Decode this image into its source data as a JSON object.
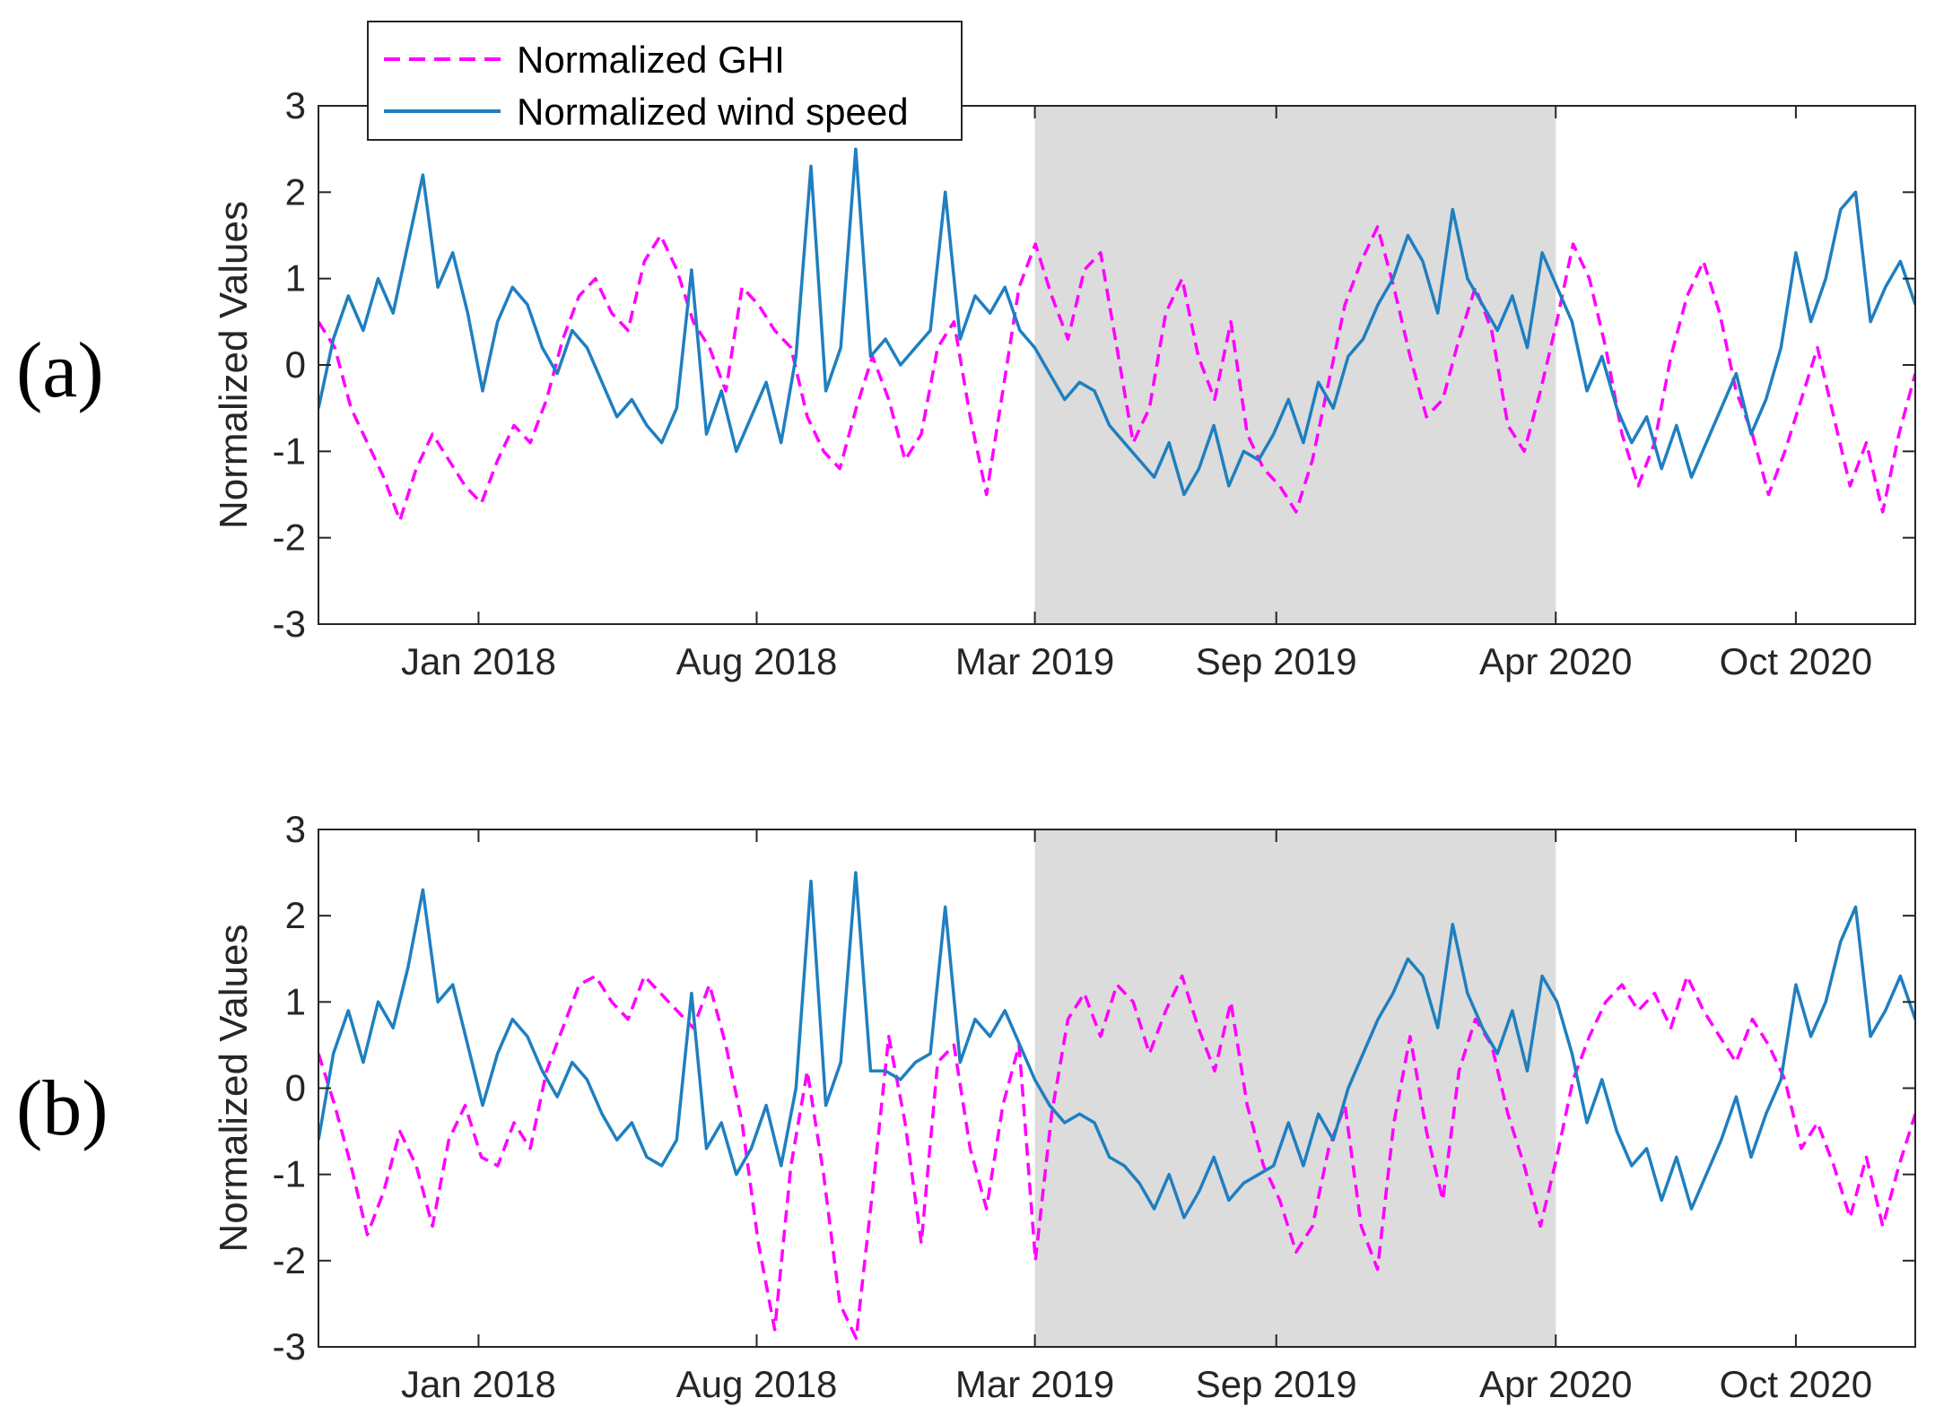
{
  "chart_data": [
    {
      "type": "line",
      "panel_label": "(a)",
      "ylabel": "Normalized Values",
      "ylim": [
        -3,
        3
      ],
      "yticks": [
        3,
        2,
        1,
        0,
        -1,
        -2,
        -3
      ],
      "xlim": [
        "2017-09-01",
        "2020-12-31"
      ],
      "xticks": [
        {
          "date": "2018-01-01",
          "label": "Jan 2018"
        },
        {
          "date": "2018-08-01",
          "label": "Aug 2018"
        },
        {
          "date": "2019-03-01",
          "label": "Mar 2019"
        },
        {
          "date": "2019-09-01",
          "label": "Sep 2019"
        },
        {
          "date": "2020-04-01",
          "label": "Apr 2020"
        },
        {
          "date": "2020-10-01",
          "label": "Oct 2020"
        }
      ],
      "shaded_region": [
        "2019-03-01",
        "2020-04-01"
      ],
      "legend": {
        "position": "top-left",
        "entries": [
          "Normalized GHI",
          "Normalized wind speed"
        ]
      },
      "series": [
        {
          "name": "Normalized GHI",
          "color": "#ff00ff",
          "style": "dashed",
          "values": [
            0.5,
            0.2,
            -0.5,
            -0.9,
            -1.3,
            -1.8,
            -1.2,
            -0.8,
            -1.1,
            -1.4,
            -1.6,
            -1.1,
            -0.7,
            -0.9,
            -0.4,
            0.3,
            0.8,
            1.0,
            0.6,
            0.4,
            1.2,
            1.5,
            1.1,
            0.5,
            0.2,
            -0.3,
            0.9,
            0.7,
            0.4,
            0.2,
            -0.6,
            -1.0,
            -1.2,
            -0.5,
            0.1,
            -0.4,
            -1.1,
            -0.8,
            0.2,
            0.5,
            -0.6,
            -1.5,
            -0.3,
            0.9,
            1.4,
            0.8,
            0.3,
            1.1,
            1.3,
            0.2,
            -0.9,
            -0.5,
            0.6,
            1.0,
            0.1,
            -0.4,
            0.5,
            -0.8,
            -1.2,
            -1.4,
            -1.7,
            -1.1,
            -0.2,
            0.7,
            1.2,
            1.6,
            0.9,
            0.1,
            -0.6,
            -0.4,
            0.3,
            0.9,
            0.4,
            -0.7,
            -1.0,
            -0.3,
            0.5,
            1.4,
            1.0,
            0.2,
            -0.8,
            -1.4,
            -0.9,
            0.1,
            0.8,
            1.2,
            0.6,
            -0.3,
            -0.8,
            -1.5,
            -1.0,
            -0.4,
            0.2,
            -0.6,
            -1.4,
            -0.9,
            -1.7,
            -0.8,
            -0.1
          ]
        },
        {
          "name": "Normalized wind speed",
          "color": "#1f7fc0",
          "style": "solid",
          "values": [
            -0.5,
            0.3,
            0.8,
            0.4,
            1.0,
            0.6,
            1.4,
            2.2,
            0.9,
            1.3,
            0.6,
            -0.3,
            0.5,
            0.9,
            0.7,
            0.2,
            -0.1,
            0.4,
            0.2,
            -0.2,
            -0.6,
            -0.4,
            -0.7,
            -0.9,
            -0.5,
            1.1,
            -0.8,
            -0.3,
            -1.0,
            -0.6,
            -0.2,
            -0.9,
            0.1,
            2.3,
            -0.3,
            0.2,
            2.5,
            0.1,
            0.3,
            0.0,
            0.2,
            0.4,
            2.0,
            0.3,
            0.8,
            0.6,
            0.9,
            0.4,
            0.2,
            -0.1,
            -0.4,
            -0.2,
            -0.3,
            -0.7,
            -0.9,
            -1.1,
            -1.3,
            -0.9,
            -1.5,
            -1.2,
            -0.7,
            -1.4,
            -1.0,
            -1.1,
            -0.8,
            -0.4,
            -0.9,
            -0.2,
            -0.5,
            0.1,
            0.3,
            0.7,
            1.0,
            1.5,
            1.2,
            0.6,
            1.8,
            1.0,
            0.7,
            0.4,
            0.8,
            0.2,
            1.3,
            0.9,
            0.5,
            -0.3,
            0.1,
            -0.5,
            -0.9,
            -0.6,
            -1.2,
            -0.7,
            -1.3,
            -0.9,
            -0.5,
            -0.1,
            -0.8,
            -0.4,
            0.2,
            1.3,
            0.5,
            1.0,
            1.8,
            2.0,
            0.5,
            0.9,
            1.2,
            0.7
          ]
        }
      ]
    },
    {
      "type": "line",
      "panel_label": "(b)",
      "ylabel": "Normalized Values",
      "ylim": [
        -3,
        3
      ],
      "yticks": [
        3,
        2,
        1,
        0,
        -1,
        -2,
        -3
      ],
      "xlim": [
        "2017-09-01",
        "2020-12-31"
      ],
      "xticks": [
        {
          "date": "2018-01-01",
          "label": "Jan 2018"
        },
        {
          "date": "2018-08-01",
          "label": "Aug 2018"
        },
        {
          "date": "2019-03-01",
          "label": "Mar 2019"
        },
        {
          "date": "2019-09-01",
          "label": "Sep 2019"
        },
        {
          "date": "2020-04-01",
          "label": "Apr 2020"
        },
        {
          "date": "2020-10-01",
          "label": "Oct 2020"
        }
      ],
      "shaded_region": [
        "2019-03-01",
        "2020-04-01"
      ],
      "series": [
        {
          "name": "Normalized GHI",
          "color": "#ff00ff",
          "style": "dashed",
          "values": [
            0.4,
            -0.2,
            -0.9,
            -1.7,
            -1.2,
            -0.5,
            -0.9,
            -1.6,
            -0.6,
            -0.2,
            -0.8,
            -0.9,
            -0.4,
            -0.7,
            0.2,
            0.7,
            1.2,
            1.3,
            1.0,
            0.8,
            1.3,
            1.1,
            0.9,
            0.7,
            1.2,
            0.5,
            -0.4,
            -1.8,
            -2.8,
            -0.9,
            0.2,
            -1.0,
            -2.5,
            -2.9,
            -1.2,
            0.6,
            -0.4,
            -1.8,
            0.3,
            0.5,
            -0.7,
            -1.4,
            -0.2,
            0.5,
            -2.0,
            -0.3,
            0.8,
            1.1,
            0.6,
            1.2,
            1.0,
            0.4,
            0.9,
            1.3,
            0.7,
            0.2,
            1.0,
            -0.2,
            -0.9,
            -1.3,
            -1.9,
            -1.6,
            -0.7,
            -0.2,
            -1.6,
            -2.1,
            -0.4,
            0.6,
            -0.5,
            -1.3,
            0.2,
            0.8,
            0.5,
            -0.3,
            -0.9,
            -1.6,
            -0.8,
            0.1,
            0.6,
            1.0,
            1.2,
            0.9,
            1.1,
            0.7,
            1.3,
            0.9,
            0.6,
            0.3,
            0.8,
            0.5,
            0.1,
            -0.7,
            -0.4,
            -0.9,
            -1.5,
            -0.8,
            -1.6,
            -0.9,
            -0.3
          ]
        },
        {
          "name": "Normalized wind speed",
          "color": "#1f7fc0",
          "style": "solid",
          "values": [
            -0.6,
            0.4,
            0.9,
            0.3,
            1.0,
            0.7,
            1.4,
            2.3,
            1.0,
            1.2,
            0.5,
            -0.2,
            0.4,
            0.8,
            0.6,
            0.2,
            -0.1,
            0.3,
            0.1,
            -0.3,
            -0.6,
            -0.4,
            -0.8,
            -0.9,
            -0.6,
            1.1,
            -0.7,
            -0.4,
            -1.0,
            -0.7,
            -0.2,
            -0.9,
            0.0,
            2.4,
            -0.2,
            0.3,
            2.5,
            0.2,
            0.2,
            0.1,
            0.3,
            0.4,
            2.1,
            0.3,
            0.8,
            0.6,
            0.9,
            0.5,
            0.1,
            -0.2,
            -0.4,
            -0.3,
            -0.4,
            -0.8,
            -0.9,
            -1.1,
            -1.4,
            -1.0,
            -1.5,
            -1.2,
            -0.8,
            -1.3,
            -1.1,
            -1.0,
            -0.9,
            -0.4,
            -0.9,
            -0.3,
            -0.6,
            0.0,
            0.4,
            0.8,
            1.1,
            1.5,
            1.3,
            0.7,
            1.9,
            1.1,
            0.7,
            0.4,
            0.9,
            0.2,
            1.3,
            1.0,
            0.4,
            -0.4,
            0.1,
            -0.5,
            -0.9,
            -0.7,
            -1.3,
            -0.8,
            -1.4,
            -1.0,
            -0.6,
            -0.1,
            -0.8,
            -0.3,
            0.1,
            1.2,
            0.6,
            1.0,
            1.7,
            2.1,
            0.6,
            0.9,
            1.3,
            0.8
          ]
        }
      ]
    }
  ]
}
